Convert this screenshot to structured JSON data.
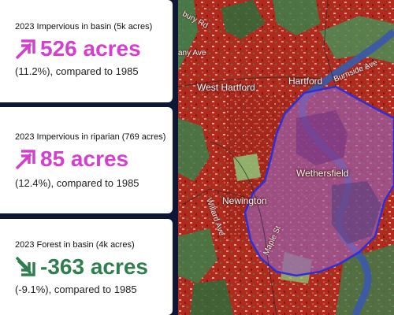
{
  "cards": [
    {
      "label": "2023 Impervious in basin (5k acres)",
      "value": "526 acres",
      "description": "(11.2%), compared to 1985",
      "trend": "up",
      "arrow_icon": "arrow-up-right-icon",
      "color": "#d43fcf"
    },
    {
      "label": "2023 Impervious in riparian (769 acres)",
      "value": "85 acres",
      "description": "(12.4%), compared to 1985",
      "trend": "up",
      "arrow_icon": "arrow-up-right-icon",
      "color": "#d43fcf"
    },
    {
      "label": "2023 Forest in basin (4k acres)",
      "value": "-363 acres",
      "description": "(-9.1%), compared to 1985",
      "trend": "down",
      "arrow_icon": "arrow-down-right-icon",
      "color": "#2f7f4e"
    }
  ],
  "map": {
    "place_labels": [
      "West Hartford",
      "Hartford",
      "Wethersfield",
      "Newington"
    ],
    "road_labels": [
      "bury Rd",
      "any Ave",
      "Burnside Ave",
      "Willard Ave",
      "Maple St"
    ],
    "colors": {
      "impervious": "#b02a1e",
      "forest": "#3e7f4a",
      "grass": "#8fbf73",
      "water": "#3b5aa8",
      "basin_fill": "#9a5fae",
      "basin_outline": "#2d2fd9"
    }
  }
}
